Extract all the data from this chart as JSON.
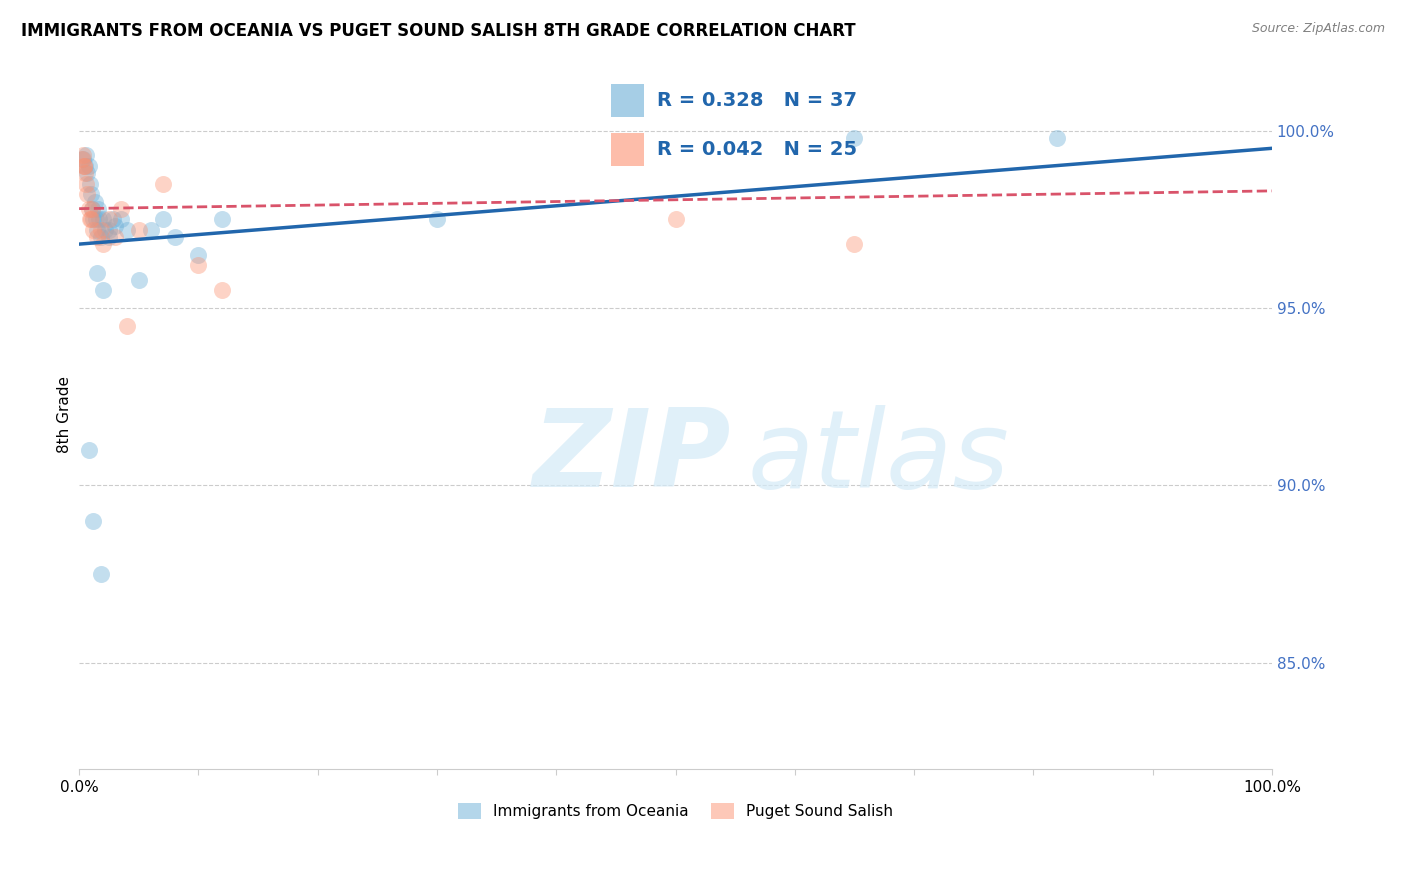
{
  "title": "IMMIGRANTS FROM OCEANIA VS PUGET SOUND SALISH 8TH GRADE CORRELATION CHART",
  "source": "Source: ZipAtlas.com",
  "ylabel": "8th Grade",
  "right_yticks": [
    85.0,
    90.0,
    95.0,
    100.0
  ],
  "blue_label": "Immigrants from Oceania",
  "pink_label": "Puget Sound Salish",
  "blue_R": 0.328,
  "blue_N": 37,
  "pink_R": 0.042,
  "pink_N": 25,
  "blue_color": "#6baed6",
  "pink_color": "#fc9272",
  "blue_line_color": "#2166ac",
  "pink_line_color": "#d9536a",
  "xlim": [
    0,
    100
  ],
  "ylim": [
    82,
    102
  ],
  "blue_x": [
    0.3,
    0.5,
    0.6,
    0.7,
    0.8,
    0.9,
    1.0,
    1.1,
    1.2,
    1.3,
    1.4,
    1.5,
    1.6,
    1.7,
    1.8,
    2.0,
    2.2,
    2.5,
    2.8,
    3.0,
    3.5,
    4.0,
    5.0,
    6.0,
    7.0,
    8.0,
    10.0,
    12.0,
    1.5,
    2.0,
    2.5,
    30.0,
    65.0,
    82.0,
    0.8,
    1.2,
    1.8
  ],
  "blue_y": [
    99.2,
    99.0,
    99.3,
    98.8,
    99.0,
    98.5,
    98.2,
    97.8,
    97.5,
    98.0,
    97.5,
    97.2,
    97.8,
    97.5,
    97.0,
    97.5,
    97.2,
    97.0,
    97.5,
    97.3,
    97.5,
    97.2,
    95.8,
    97.2,
    97.5,
    97.0,
    96.5,
    97.5,
    96.0,
    95.5,
    97.2,
    97.5,
    99.8,
    99.8,
    91.0,
    89.0,
    87.5
  ],
  "pink_x": [
    0.2,
    0.3,
    0.4,
    0.5,
    0.6,
    0.7,
    0.8,
    0.9,
    1.0,
    1.1,
    1.2,
    1.5,
    1.8,
    2.0,
    2.5,
    3.0,
    3.5,
    4.0,
    5.0,
    7.0,
    10.0,
    12.0,
    50.0,
    65.0,
    0.4
  ],
  "pink_y": [
    99.2,
    99.3,
    99.0,
    98.8,
    98.5,
    98.2,
    97.8,
    97.5,
    97.5,
    97.8,
    97.2,
    97.0,
    97.2,
    96.8,
    97.5,
    97.0,
    97.8,
    94.5,
    97.2,
    98.5,
    96.2,
    95.5,
    97.5,
    96.8,
    99.0
  ],
  "blue_trend_x": [
    0,
    100
  ],
  "blue_trend_y": [
    96.8,
    99.5
  ],
  "pink_trend_x": [
    0,
    100
  ],
  "pink_trend_y": [
    97.8,
    98.3
  ]
}
